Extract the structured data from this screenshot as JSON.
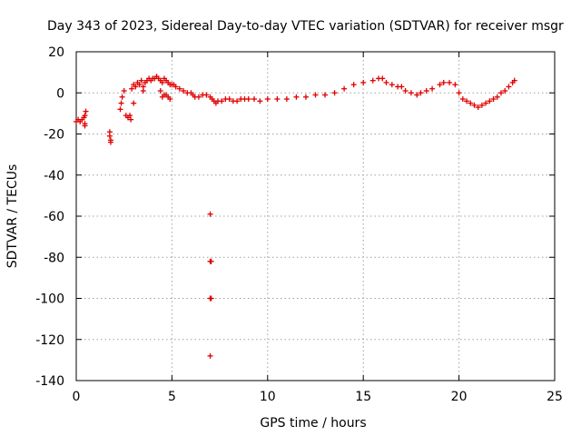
{
  "chart_data": {
    "type": "scatter",
    "title": "Day 343 of 2023, Sidereal Day-to-day VTEC variation (SDTVAR) for receiver msgr",
    "xlabel": "GPS time / hours",
    "ylabel": "SDTVAR / TECUs",
    "xlim": [
      0,
      25
    ],
    "ylim": [
      -140,
      20
    ],
    "xticks": [
      0,
      5,
      10,
      15,
      20,
      25
    ],
    "yticks": [
      -140,
      -120,
      -100,
      -80,
      -60,
      -40,
      -20,
      0,
      20
    ],
    "grid": true,
    "series": [
      {
        "name": "SDTVAR",
        "color": "#e00000",
        "marker": "+",
        "x": [
          0.0,
          0.1,
          0.2,
          0.3,
          0.4,
          0.45,
          0.45,
          0.5,
          0.45,
          1.75,
          1.75,
          1.8,
          1.8,
          2.3,
          2.35,
          2.4,
          2.5,
          2.6,
          2.7,
          2.8,
          2.85,
          2.9,
          3.0,
          3.0,
          3.1,
          3.2,
          3.3,
          3.4,
          3.5,
          3.5,
          3.6,
          3.7,
          3.8,
          3.9,
          4.0,
          4.1,
          4.2,
          4.3,
          4.4,
          4.5,
          4.6,
          4.7,
          4.8,
          4.9,
          5.0,
          4.7,
          4.8,
          4.9,
          4.6,
          4.5,
          4.4,
          5.1,
          5.2,
          5.4,
          5.6,
          5.8,
          6.0,
          6.1,
          6.2,
          6.4,
          6.6,
          6.8,
          7.0,
          7.1,
          7.2,
          7.3,
          7.4,
          7.6,
          7.8,
          8.0,
          8.2,
          8.4,
          8.6,
          8.8,
          9.0,
          9.3,
          9.6,
          10.0,
          10.5,
          11.0,
          11.5,
          12.0,
          12.5,
          13.0,
          13.5,
          14.0,
          14.5,
          15.0,
          15.5,
          15.8,
          16.0,
          16.2,
          16.5,
          16.8,
          17.0,
          17.2,
          17.5,
          17.8,
          18.0,
          18.3,
          18.6,
          19.0,
          19.2,
          19.5,
          19.8,
          20.0,
          20.2,
          20.4,
          20.6,
          20.8,
          21.0,
          21.2,
          21.4,
          21.6,
          21.8,
          22.0,
          22.2,
          22.4,
          22.6,
          22.8,
          22.9,
          7.0,
          7.0,
          7.05,
          7.0,
          7.05,
          7.0
        ],
        "y": [
          -14,
          -13,
          -14,
          -13,
          -12,
          -15,
          -11,
          -9,
          -16,
          -19,
          -21,
          -23,
          -24,
          -8,
          -5,
          -2,
          1,
          -11,
          -12,
          -11,
          -13,
          2,
          4,
          -5,
          3,
          5,
          4,
          6,
          1,
          3,
          5,
          6,
          7,
          6,
          7,
          7,
          8,
          7,
          6,
          5,
          7,
          6,
          5,
          4,
          4,
          -1,
          -2,
          -3,
          -1,
          -2,
          1,
          4,
          3,
          2,
          1,
          0,
          0,
          -1,
          -2,
          -2,
          -1,
          -1,
          -2,
          -3,
          -4,
          -5,
          -4,
          -4,
          -3,
          -3,
          -4,
          -4,
          -3,
          -3,
          -3,
          -3,
          -4,
          -3,
          -3,
          -3,
          -2,
          -2,
          -1,
          -1,
          0,
          2,
          4,
          5,
          6,
          7,
          7,
          5,
          4,
          3,
          3,
          1,
          0,
          -1,
          0,
          1,
          2,
          4,
          5,
          5,
          4,
          0,
          -3,
          -4,
          -5,
          -6,
          -7,
          -6,
          -5,
          -4,
          -3,
          -2,
          0,
          1,
          3,
          5,
          6,
          -59,
          -82,
          -82,
          -100,
          -100,
          -128
        ]
      }
    ]
  }
}
